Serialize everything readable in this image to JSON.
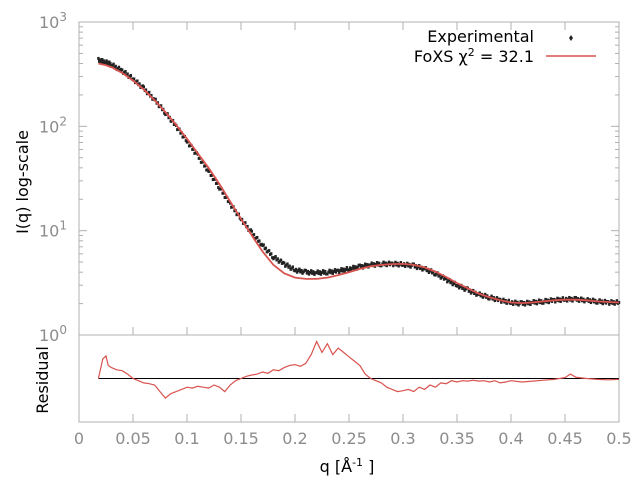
{
  "chart_data": [
    {
      "type": "scatter",
      "panel": "main",
      "ylabel": "I(q) log-scale",
      "yscale": "log",
      "xlim": [
        0,
        0.5
      ],
      "ylim": [
        1,
        1000
      ],
      "y_ticks": [
        {
          "base": "10",
          "exp": "0",
          "value": 1
        },
        {
          "base": "10",
          "exp": "1",
          "value": 10
        },
        {
          "base": "10",
          "exp": "2",
          "value": 100
        },
        {
          "base": "10",
          "exp": "3",
          "value": 1000
        }
      ],
      "grid": false,
      "legend_position": "top-right",
      "series": [
        {
          "name": "Experimental",
          "style": "points",
          "color": "#222222",
          "x": [
            0.018,
            0.025,
            0.03,
            0.04,
            0.05,
            0.06,
            0.07,
            0.08,
            0.09,
            0.1,
            0.11,
            0.12,
            0.13,
            0.14,
            0.15,
            0.16,
            0.17,
            0.18,
            0.19,
            0.2,
            0.21,
            0.22,
            0.23,
            0.24,
            0.25,
            0.26,
            0.27,
            0.28,
            0.29,
            0.3,
            0.31,
            0.32,
            0.33,
            0.34,
            0.35,
            0.36,
            0.37,
            0.38,
            0.39,
            0.4,
            0.41,
            0.42,
            0.43,
            0.44,
            0.45,
            0.46,
            0.47,
            0.48,
            0.49,
            0.5
          ],
          "y": [
            430,
            410,
            390,
            340,
            285,
            230,
            180,
            135,
            100,
            72,
            52,
            37,
            26,
            18,
            13,
            9.5,
            7.2,
            5.6,
            4.8,
            4.2,
            4.0,
            3.95,
            4.0,
            4.1,
            4.3,
            4.5,
            4.7,
            4.8,
            4.8,
            4.75,
            4.6,
            4.3,
            3.9,
            3.4,
            3.0,
            2.7,
            2.45,
            2.3,
            2.15,
            2.05,
            2.0,
            2.05,
            2.1,
            2.15,
            2.2,
            2.2,
            2.15,
            2.1,
            2.05,
            2.05
          ]
        },
        {
          "name": "FoXS χ",
          "name_sup": "2",
          "name_suffix": " = 32.1",
          "style": "line",
          "color": "#d9534f",
          "x": [
            0.018,
            0.025,
            0.03,
            0.04,
            0.05,
            0.06,
            0.07,
            0.08,
            0.09,
            0.1,
            0.11,
            0.12,
            0.13,
            0.14,
            0.15,
            0.16,
            0.17,
            0.18,
            0.19,
            0.2,
            0.21,
            0.22,
            0.23,
            0.24,
            0.25,
            0.26,
            0.27,
            0.28,
            0.29,
            0.3,
            0.31,
            0.32,
            0.33,
            0.34,
            0.35,
            0.36,
            0.37,
            0.38,
            0.39,
            0.4,
            0.41,
            0.42,
            0.43,
            0.44,
            0.45,
            0.46,
            0.47,
            0.48,
            0.49,
            0.5
          ],
          "y": [
            400,
            385,
            370,
            325,
            275,
            225,
            178,
            137,
            103,
            76,
            55,
            40,
            28,
            19,
            13,
            9.0,
            6.3,
            4.7,
            3.9,
            3.55,
            3.45,
            3.45,
            3.55,
            3.75,
            4.0,
            4.3,
            4.55,
            4.7,
            4.78,
            4.8,
            4.7,
            4.45,
            4.05,
            3.6,
            3.15,
            2.8,
            2.5,
            2.3,
            2.15,
            2.05,
            2.02,
            2.05,
            2.1,
            2.15,
            2.18,
            2.18,
            2.15,
            2.1,
            2.07,
            2.05
          ]
        }
      ]
    },
    {
      "type": "line",
      "panel": "residual",
      "xlabel_main": "q [Å",
      "xlabel_sup": "-1",
      "xlabel_end": " ]",
      "ylabel": "Residual",
      "xlim": [
        0,
        0.5
      ],
      "ylim": [
        -1,
        1
      ],
      "x_ticks": [
        "0",
        "0.05",
        "0.1",
        "0.15",
        "0.2",
        "0.25",
        "0.3",
        "0.35",
        "0.4",
        "0.45",
        "0.5"
      ],
      "x_tick_values": [
        0,
        0.05,
        0.1,
        0.15,
        0.2,
        0.25,
        0.3,
        0.35,
        0.4,
        0.45,
        0.5
      ],
      "zero_line_color": "#000000",
      "series": [
        {
          "name": "",
          "color": "#d9534f",
          "x": [
            0.018,
            0.022,
            0.025,
            0.027,
            0.03,
            0.035,
            0.04,
            0.045,
            0.05,
            0.055,
            0.06,
            0.065,
            0.07,
            0.075,
            0.08,
            0.085,
            0.09,
            0.095,
            0.1,
            0.105,
            0.11,
            0.115,
            0.12,
            0.125,
            0.13,
            0.135,
            0.14,
            0.145,
            0.15,
            0.155,
            0.16,
            0.165,
            0.17,
            0.175,
            0.18,
            0.185,
            0.19,
            0.195,
            0.2,
            0.205,
            0.21,
            0.215,
            0.22,
            0.225,
            0.23,
            0.235,
            0.24,
            0.245,
            0.25,
            0.255,
            0.26,
            0.265,
            0.27,
            0.275,
            0.28,
            0.285,
            0.29,
            0.295,
            0.3,
            0.305,
            0.31,
            0.315,
            0.32,
            0.325,
            0.33,
            0.335,
            0.34,
            0.345,
            0.35,
            0.355,
            0.36,
            0.365,
            0.37,
            0.375,
            0.38,
            0.385,
            0.39,
            0.395,
            0.4,
            0.41,
            0.42,
            0.43,
            0.44,
            0.45,
            0.455,
            0.46,
            0.47,
            0.48,
            0.49,
            0.5
          ],
          "y": [
            0.0,
            0.45,
            0.52,
            0.3,
            0.25,
            0.2,
            0.18,
            0.1,
            0.0,
            -0.05,
            -0.1,
            -0.12,
            -0.15,
            -0.3,
            -0.45,
            -0.35,
            -0.3,
            -0.25,
            -0.2,
            -0.22,
            -0.18,
            -0.2,
            -0.22,
            -0.15,
            -0.2,
            -0.3,
            -0.15,
            -0.05,
            0.0,
            0.05,
            0.08,
            0.1,
            0.15,
            0.12,
            0.2,
            0.18,
            0.25,
            0.3,
            0.32,
            0.28,
            0.35,
            0.55,
            0.85,
            0.6,
            0.8,
            0.55,
            0.7,
            0.6,
            0.5,
            0.4,
            0.3,
            0.1,
            0.0,
            -0.05,
            -0.1,
            -0.2,
            -0.25,
            -0.3,
            -0.28,
            -0.25,
            -0.3,
            -0.2,
            -0.25,
            -0.15,
            -0.2,
            -0.1,
            -0.12,
            -0.05,
            -0.08,
            -0.05,
            -0.06,
            -0.04,
            -0.06,
            -0.05,
            -0.08,
            -0.05,
            -0.1,
            -0.08,
            -0.05,
            -0.08,
            -0.06,
            -0.04,
            -0.02,
            0.02,
            0.1,
            0.03,
            0.0,
            -0.02,
            -0.03,
            -0.02
          ]
        }
      ]
    }
  ]
}
